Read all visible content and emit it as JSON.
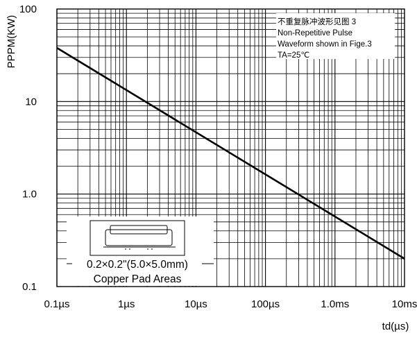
{
  "chart_data": {
    "type": "line",
    "x_scale": "log",
    "y_scale": "log",
    "x_unit": "µs",
    "xlim": [
      0.1,
      10000
    ],
    "ylim": [
      0.1,
      100
    ],
    "x_tick_labels": [
      "0.1µs",
      "1µs",
      "10µs",
      "100µs",
      "1.0ms",
      "10ms"
    ],
    "y_tick_labels": [
      "0.1",
      "1.0",
      "10",
      "100"
    ],
    "xlabel": "td(µs)",
    "ylabel": "PPPM(KW)",
    "grid": true,
    "series": [
      {
        "x": [
          0.1,
          10000
        ],
        "y": [
          38,
          0.2
        ]
      }
    ],
    "annotation": {
      "lines": [
        "不重复脉冲波形见图 3",
        "Non-Repetitive Pulse",
        "Waveform shown in Fige.3",
        "TA=25℃"
      ]
    },
    "inset": {
      "lines": [
        "0.2×0.2\"(5.0×5.0mm)",
        "Copper Pad Areas"
      ]
    }
  }
}
